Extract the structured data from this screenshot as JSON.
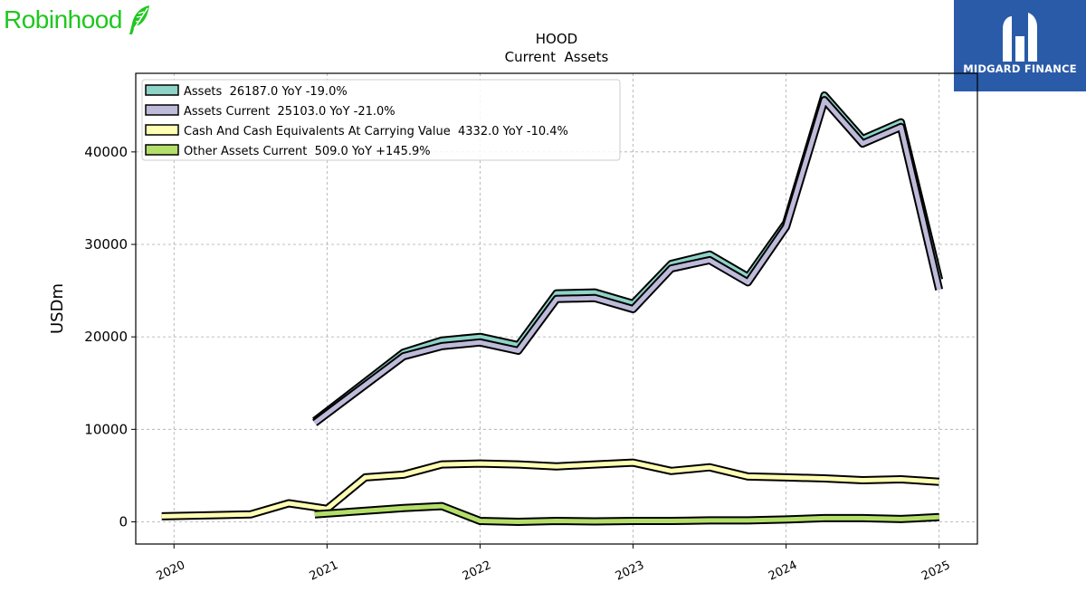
{
  "brand": {
    "name": "Robinhood",
    "icon": "feather-icon",
    "color": "#1fc71f"
  },
  "badge": {
    "name": "MIDGARD FINANCE",
    "icon": "midgard-logo-icon",
    "color": "#2a5ba8"
  },
  "chart_data": {
    "type": "line",
    "title": "HOOD",
    "subtitle": "Current  Assets",
    "ylabel": "USDm",
    "xlabel": "",
    "xlim": [
      2019.75,
      2025.25
    ],
    "ylim": [
      -2400,
      48500
    ],
    "yticks": [
      0,
      10000,
      20000,
      30000,
      40000
    ],
    "xticks": [
      "2020",
      "2021",
      "2022",
      "2023",
      "2024",
      "2025"
    ],
    "grid": true,
    "legend_position": "top-left",
    "series": [
      {
        "name": "Assets  26187.0 YoY -19.0%",
        "color": "#8dd3c7",
        "x": [
          2020.92,
          2021.5,
          2021.75,
          2022.0,
          2022.25,
          2022.5,
          2022.75,
          2023.0,
          2023.25,
          2023.5,
          2023.75,
          2024.0,
          2024.25,
          2024.5,
          2024.75,
          2025.0
        ],
        "values": [
          10900,
          18300,
          19600,
          20000,
          19100,
          24700,
          24800,
          23600,
          27900,
          28900,
          26500,
          32300,
          46100,
          41400,
          43200,
          26187
        ]
      },
      {
        "name": "Assets Current  25103.0 YoY -21.0%",
        "color": "#bebada",
        "x": [
          2020.92,
          2021.5,
          2021.75,
          2022.0,
          2022.25,
          2022.5,
          2022.75,
          2023.0,
          2023.25,
          2023.5,
          2023.75,
          2024.0,
          2024.25,
          2024.5,
          2024.75,
          2025.0
        ],
        "values": [
          10700,
          17900,
          19000,
          19400,
          18500,
          24100,
          24200,
          23000,
          27400,
          28300,
          25900,
          31900,
          45600,
          40900,
          42700,
          25103
        ]
      },
      {
        "name": "Cash And Cash Equivalents At Carrying Value  4332.0 YoY -10.4%",
        "color": "#ffffb3",
        "x": [
          2019.92,
          2020.5,
          2020.75,
          2021.0,
          2021.25,
          2021.5,
          2021.75,
          2022.0,
          2022.25,
          2022.5,
          2022.75,
          2023.0,
          2023.25,
          2023.5,
          2023.75,
          2024.0,
          2024.25,
          2024.5,
          2024.75,
          2025.0
        ],
        "values": [
          600,
          800,
          2000,
          1400,
          4800,
          5100,
          6200,
          6300,
          6200,
          6000,
          6200,
          6400,
          5500,
          5900,
          4900,
          4800,
          4700,
          4500,
          4600,
          4332
        ]
      },
      {
        "name": "Other Assets Current  509.0 YoY +145.9%",
        "color": "#b3de69",
        "x": [
          2020.92,
          2021.5,
          2021.75,
          2022.0,
          2022.25,
          2022.5,
          2022.75,
          2023.0,
          2023.25,
          2023.5,
          2023.75,
          2024.0,
          2024.25,
          2024.5,
          2024.75,
          2025.0
        ],
        "values": [
          800,
          1500,
          1700,
          100,
          0,
          100,
          50,
          100,
          100,
          150,
          150,
          250,
          400,
          400,
          300,
          509
        ]
      }
    ]
  }
}
